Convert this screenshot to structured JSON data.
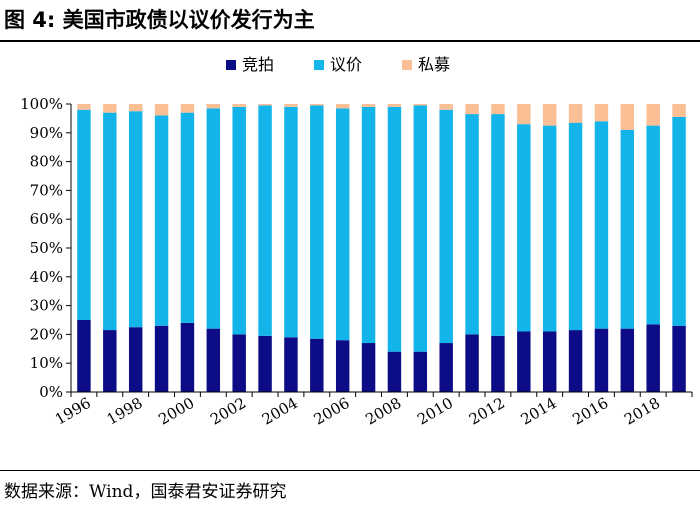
{
  "figure": {
    "title": "图 4:  美国市政债以议价发行为主",
    "source": "数据来源：Wind，国泰君安证券研究"
  },
  "chart_data": {
    "type": "bar",
    "stacked": true,
    "categories": [
      "1996",
      "1997",
      "1998",
      "1999",
      "2000",
      "2001",
      "2002",
      "2003",
      "2004",
      "2005",
      "2006",
      "2007",
      "2008",
      "2009",
      "2010",
      "2011",
      "2012",
      "2013",
      "2014",
      "2015",
      "2016",
      "2017",
      "2018",
      "2019"
    ],
    "x_tick_labels": [
      "1996",
      "1998",
      "2000",
      "2002",
      "2004",
      "2006",
      "2008",
      "2010",
      "2012",
      "2014",
      "2016",
      "2018"
    ],
    "series": [
      {
        "name": "竞拍",
        "color": "#0b0c86",
        "values": [
          25,
          21.5,
          22.5,
          23,
          24,
          22,
          20,
          19.5,
          19,
          18.5,
          18,
          17,
          14,
          14,
          17,
          20,
          19.5,
          21,
          21,
          21.5,
          22,
          22,
          23.5,
          23
        ]
      },
      {
        "name": "议价",
        "color": "#13b4ea",
        "values": [
          73,
          75.5,
          75,
          73,
          73,
          76.5,
          79,
          80,
          80,
          81,
          80.5,
          82,
          85,
          85.5,
          81,
          76.5,
          77,
          72,
          71.5,
          72,
          72,
          69,
          69,
          72.5
        ]
      },
      {
        "name": "私募",
        "color": "#fbbf95",
        "values": [
          2,
          3,
          2.5,
          4,
          3,
          1.5,
          1,
          0.5,
          1,
          0.5,
          1.5,
          1,
          1,
          0.5,
          2,
          3.5,
          3.5,
          7,
          7.5,
          6.5,
          6,
          9,
          7.5,
          4.5
        ]
      }
    ],
    "y_tick_labels": [
      "0%",
      "10%",
      "20%",
      "30%",
      "40%",
      "50%",
      "60%",
      "70%",
      "80%",
      "90%",
      "100%"
    ],
    "ylim": [
      0,
      100
    ],
    "grid": false,
    "legend_position": "top-center"
  }
}
